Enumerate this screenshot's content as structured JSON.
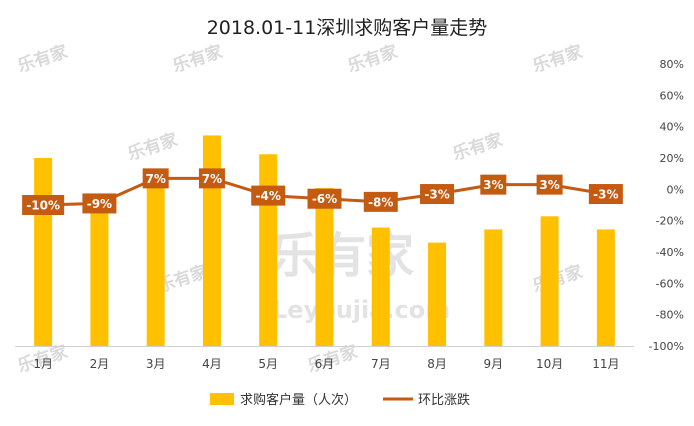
{
  "chart_data": {
    "type": "bar",
    "title": "2018.01-11深圳求购客户量走势",
    "categories": [
      "1月",
      "2月",
      "3月",
      "4月",
      "5月",
      "6月",
      "7月",
      "8月",
      "9月",
      "10月",
      "11月"
    ],
    "series": [
      {
        "name": "求购客户量（人次）",
        "type": "bar",
        "axis": "left",
        "color": "#FFC000",
        "values": [
          100,
          76,
          94,
          112,
          102,
          84,
          63,
          55,
          62,
          69,
          62
        ]
      },
      {
        "name": "环比涨跌",
        "type": "line",
        "axis": "right",
        "color": "#C55A11",
        "values": [
          -10,
          -9,
          7,
          7,
          -4,
          -6,
          -8,
          -3,
          3,
          3,
          -3
        ],
        "labels": [
          "-10%",
          "-9%",
          "7%",
          "7%",
          "-4%",
          "-6%",
          "-8%",
          "-3%",
          "3%",
          "3%",
          "-3%"
        ]
      }
    ],
    "y_right": {
      "ticks": [
        "80%",
        "60%",
        "40%",
        "20%",
        "0%",
        "-20%",
        "-40%",
        "-60%",
        "-80%",
        "-100%"
      ],
      "range": [
        -100,
        80
      ]
    },
    "y_left_range": [
      0,
      150
    ],
    "legend_position": "bottom",
    "grid": false
  },
  "watermark": {
    "logo_text": "乐有家",
    "url_text": "Leyoujia.com"
  }
}
